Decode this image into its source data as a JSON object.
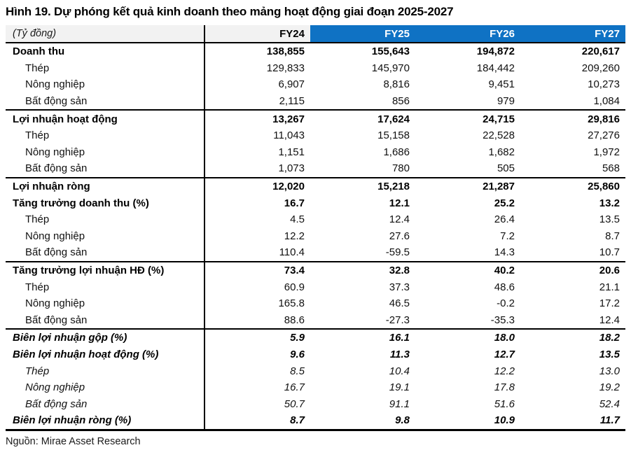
{
  "title": "Hình 19. Dự phóng kết quả kinh doanh theo mảng hoạt động giai đoạn 2025-2027",
  "source": "Nguồn: Mirae Asset Research",
  "colors": {
    "header_blue": "#0F72C4",
    "header_gray": "#F2F2F2",
    "rule_black": "#000000"
  },
  "table": {
    "unit_label": "(Tỷ đồng)",
    "columns": [
      "FY24",
      "FY25",
      "FY26",
      "FY27"
    ],
    "rows": [
      {
        "label": "Doanh thu",
        "style": "bold",
        "divider_above": false,
        "values": [
          "138,855",
          "155,643",
          "194,872",
          "220,617"
        ]
      },
      {
        "label": "Thép",
        "style": "sub",
        "divider_above": false,
        "values": [
          "129,833",
          "145,970",
          "184,442",
          "209,260"
        ]
      },
      {
        "label": "Nông nghiệp",
        "style": "sub",
        "divider_above": false,
        "values": [
          "6,907",
          "8,816",
          "9,451",
          "10,273"
        ]
      },
      {
        "label": "Bất động sản",
        "style": "sub",
        "divider_above": false,
        "values": [
          "2,115",
          "856",
          "979",
          "1,084"
        ]
      },
      {
        "label": "Lợi nhuận hoạt động",
        "style": "bold",
        "divider_above": true,
        "values": [
          "13,267",
          "17,624",
          "24,715",
          "29,816"
        ]
      },
      {
        "label": "Thép",
        "style": "sub",
        "divider_above": false,
        "values": [
          "11,043",
          "15,158",
          "22,528",
          "27,276"
        ]
      },
      {
        "label": "Nông nghiệp",
        "style": "sub",
        "divider_above": false,
        "values": [
          "1,151",
          "1,686",
          "1,682",
          "1,972"
        ]
      },
      {
        "label": "Bất động sản",
        "style": "sub",
        "divider_above": false,
        "values": [
          "1,073",
          "780",
          "505",
          "568"
        ]
      },
      {
        "label": "Lợi nhuận ròng",
        "style": "bold",
        "divider_above": true,
        "values": [
          "12,020",
          "15,218",
          "21,287",
          "25,860"
        ]
      },
      {
        "label": "Tăng trưởng doanh thu (%)",
        "style": "bold",
        "divider_above": false,
        "values": [
          "16.7",
          "12.1",
          "25.2",
          "13.2"
        ]
      },
      {
        "label": "Thép",
        "style": "sub",
        "divider_above": false,
        "values": [
          "4.5",
          "12.4",
          "26.4",
          "13.5"
        ]
      },
      {
        "label": "Nông nghiệp",
        "style": "sub",
        "divider_above": false,
        "values": [
          "12.2",
          "27.6",
          "7.2",
          "8.7"
        ]
      },
      {
        "label": "Bất động sản",
        "style": "sub",
        "divider_above": false,
        "values": [
          "110.4",
          "-59.5",
          "14.3",
          "10.7"
        ]
      },
      {
        "label": "Tăng trưởng lợi nhuận HĐ (%)",
        "style": "bold",
        "divider_above": true,
        "values": [
          "73.4",
          "32.8",
          "40.2",
          "20.6"
        ]
      },
      {
        "label": "Thép",
        "style": "sub",
        "divider_above": false,
        "values": [
          "60.9",
          "37.3",
          "48.6",
          "21.1"
        ]
      },
      {
        "label": "Nông nghiệp",
        "style": "sub",
        "divider_above": false,
        "values": [
          "165.8",
          "46.5",
          "-0.2",
          "17.2"
        ]
      },
      {
        "label": "Bất động sản",
        "style": "sub",
        "divider_above": false,
        "values": [
          "88.6",
          "-27.3",
          "-35.3",
          "12.4"
        ]
      },
      {
        "label": "Biên lợi nhuận gộp (%)",
        "style": "bold-italic",
        "divider_above": true,
        "values": [
          "5.9",
          "16.1",
          "18.0",
          "18.2"
        ]
      },
      {
        "label": "Biên lợi nhuận hoạt động (%)",
        "style": "bold-italic",
        "divider_above": false,
        "values": [
          "9.6",
          "11.3",
          "12.7",
          "13.5"
        ]
      },
      {
        "label": "Thép",
        "style": "sub-italic",
        "divider_above": false,
        "values": [
          "8.5",
          "10.4",
          "12.2",
          "13.0"
        ]
      },
      {
        "label": "Nông nghiệp",
        "style": "sub-italic",
        "divider_above": false,
        "values": [
          "16.7",
          "19.1",
          "17.8",
          "19.2"
        ]
      },
      {
        "label": "Bất động sản",
        "style": "sub-italic",
        "divider_above": false,
        "values": [
          "50.7",
          "91.1",
          "51.6",
          "52.4"
        ]
      },
      {
        "label": "Biên lợi nhuận ròng (%)",
        "style": "bold-italic",
        "divider_above": false,
        "values": [
          "8.7",
          "9.8",
          "10.9",
          "11.7"
        ]
      }
    ]
  }
}
